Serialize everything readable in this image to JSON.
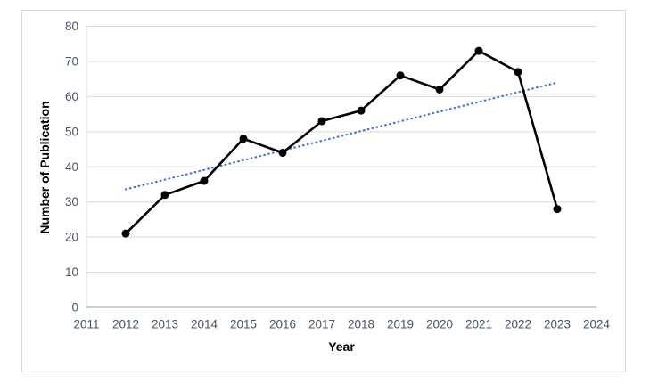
{
  "chart_data": {
    "type": "line",
    "title": "",
    "xlabel": "Year",
    "ylabel": "Number of Publication",
    "x": [
      2012,
      2013,
      2014,
      2015,
      2016,
      2017,
      2018,
      2019,
      2020,
      2021,
      2022,
      2023
    ],
    "values": [
      21,
      32,
      36,
      48,
      44,
      53,
      56,
      66,
      62,
      73,
      67,
      28
    ],
    "series_name": "Number of Publication",
    "xlim": [
      2011,
      2024
    ],
    "ylim": [
      0,
      80
    ],
    "x_tick_step": 1,
    "y_tick_step": 10,
    "grid": "horizontal",
    "legend_position": "none",
    "line_color": "#000000",
    "marker": "filled-circle",
    "trendline": {
      "type": "linear",
      "style": "dotted",
      "color": "#4472c4",
      "x_start": 2012,
      "y_start": 33.6,
      "x_end": 2023,
      "y_end": 64.0
    },
    "colors": {
      "tick_label": "#44546a",
      "gridline": "#d9d9d9",
      "y_axis_line": "#d2d2d2",
      "x_axis_line": "#9e9e9e",
      "figure_border": "#d9d9d9",
      "background": "#ffffff"
    }
  }
}
